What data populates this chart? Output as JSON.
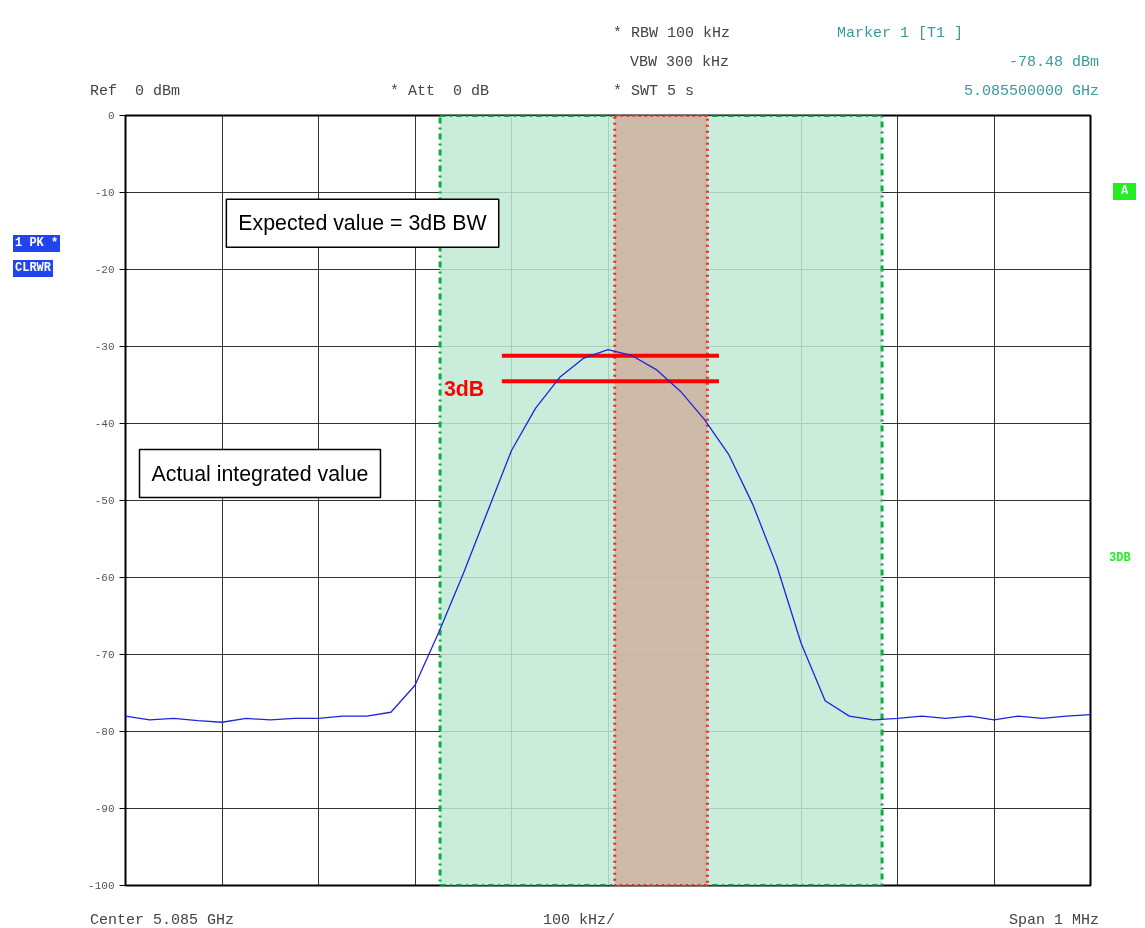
{
  "chart_data": {
    "type": "line",
    "annotations": [
      "Ref  0 dBm",
      "* Att  0 dB",
      "* RBW 100 kHz",
      "VBW 300 kHz",
      "* SWT 5 s",
      "Marker 1 [T1 ]",
      "-78.48 dBm",
      "5.085500000 GHz",
      "1 PK *",
      "CLRWR",
      "A",
      "3DB",
      "Center 5.085 GHz",
      "100 kHz/",
      "Span 1 MHz",
      "Expected value = 3dB BW",
      "Actual integrated value",
      "3dB"
    ],
    "categories": [
      null,
      null,
      null,
      null,
      null,
      null,
      null,
      null,
      null,
      null,
      null,
      null,
      null,
      null,
      null,
      null,
      null,
      null,
      null,
      null,
      null,
      null,
      null,
      null,
      null,
      null,
      null,
      null,
      null,
      null,
      null,
      null,
      null,
      null,
      null,
      null,
      null,
      null,
      null,
      null,
      null
    ],
    "series": [
      {
        "color": "#2222dd",
        "values": [
          -78.0,
          -78.5,
          -78.3,
          -78.6,
          -78.8,
          -78.3,
          -78.5,
          -78.3,
          -78.3,
          -78.0,
          -78.0,
          -77.5,
          -74.0,
          -67.0,
          -59.5,
          -51.5,
          -43.5,
          -38.0,
          -34.0,
          -31.5,
          -30.4,
          -31.2,
          -33.0,
          -35.8,
          -39.5,
          -44.0,
          -50.5,
          -58.5,
          -68.5,
          -76.0,
          -78.0,
          -78.5,
          -78.3,
          -78.0,
          -78.3,
          -78.0,
          -78.5,
          -78.0,
          -78.3,
          -78.0,
          -77.8
        ]
      }
    ],
    "ref_lines": [
      {
        "axis": "y",
        "value": -31.2,
        "color": "#ff0000"
      },
      {
        "axis": "y",
        "value": -34.5,
        "color": "#ff0000"
      }
    ],
    "ylim": [
      -100,
      0
    ],
    "yticks": [
      0,
      -10,
      -20,
      -30,
      -40,
      -50,
      -60,
      -70,
      -80,
      -90,
      -100
    ],
    "tick_labels": "y",
    "grid": true,
    "line_style": "solid"
  }
}
